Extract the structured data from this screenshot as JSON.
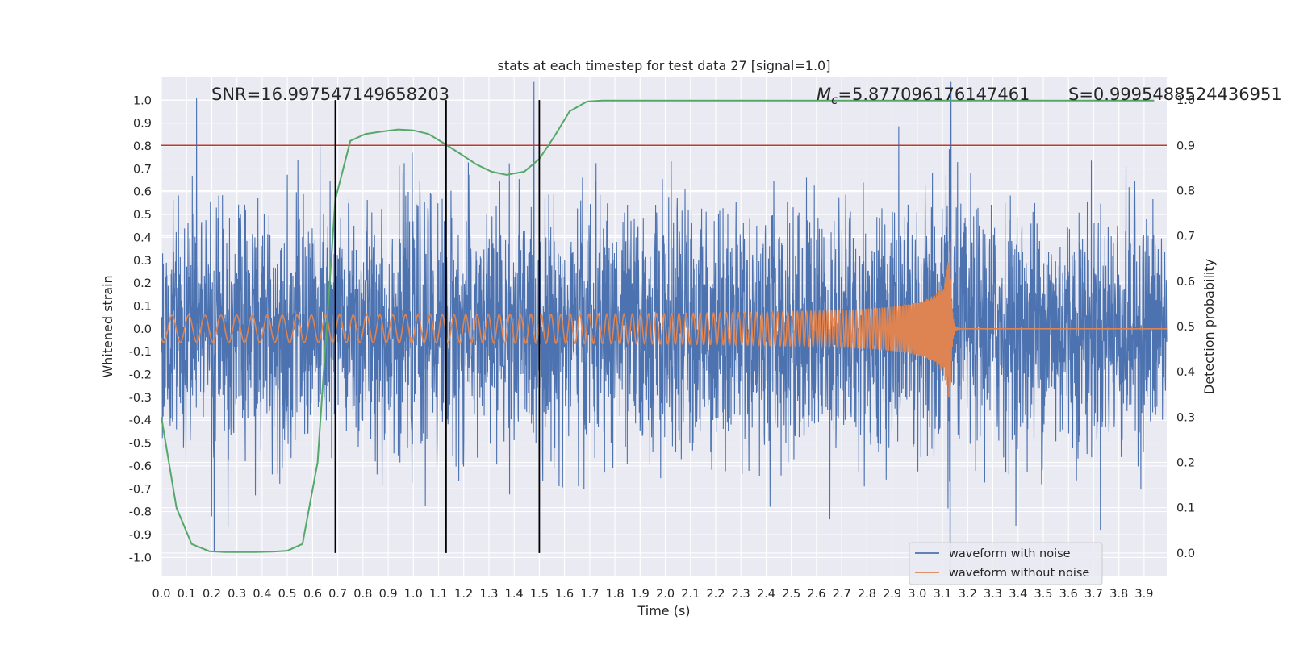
{
  "chart_data": {
    "type": "line",
    "title": "stats at each timestep for test data 27 [signal=1.0]",
    "xlabel": "Time (s)",
    "ylabel": "Whitened strain",
    "ylabel_right": "Detection probability",
    "xlim": [
      0.0,
      3.99
    ],
    "ylim": [
      -1.08,
      1.1
    ],
    "ylim_right": [
      -0.05,
      1.05
    ],
    "x_ticks": [
      "0.0",
      "0.1",
      "0.2",
      "0.3",
      "0.4",
      "0.5",
      "0.6",
      "0.7",
      "0.8",
      "0.9",
      "1.0",
      "1.1",
      "1.2",
      "1.3",
      "1.4",
      "1.5",
      "1.6",
      "1.7",
      "1.8",
      "1.9",
      "2.0",
      "2.1",
      "2.2",
      "2.3",
      "2.4",
      "2.5",
      "2.6",
      "2.7",
      "2.8",
      "2.9",
      "3.0",
      "3.1",
      "3.2",
      "3.3",
      "3.4",
      "3.5",
      "3.6",
      "3.7",
      "3.8",
      "3.9"
    ],
    "y_ticks": [
      "1.0",
      "0.9",
      "0.8",
      "0.7",
      "0.6",
      "0.5",
      "0.4",
      "0.3",
      "0.2",
      "0.1",
      "0.0",
      "-0.1",
      "-0.2",
      "-0.3",
      "-0.4",
      "-0.5",
      "-0.6",
      "-0.7",
      "-0.8",
      "-0.9",
      "-1.0"
    ],
    "y_ticks_right": [
      "1.0",
      "0.9",
      "0.8",
      "0.7",
      "0.6",
      "0.5",
      "0.4",
      "0.3",
      "0.2",
      "0.1",
      "0.0"
    ],
    "grid": true,
    "legend_position": "lower-right",
    "annotations": {
      "snr": "SNR=16.997547149658203",
      "mc_symbol": "M",
      "mc_sub": "c",
      "mc_value": "=5.877096176147461",
      "s": "S=0.9995488524436951"
    },
    "series": [
      {
        "name": "waveform with noise",
        "color": "#4c72b0",
        "kind": "noise",
        "std": 0.26,
        "peak_time": 3.13
      },
      {
        "name": "waveform without noise",
        "color": "#dd8452",
        "kind": "chirp",
        "start_amp": 0.05,
        "end_amp": 0.38,
        "merger_time": 3.13
      },
      {
        "name": "detection probability",
        "axis": "right",
        "color": "#55a868",
        "x": [
          0.0,
          0.06,
          0.12,
          0.19,
          0.25,
          0.31,
          0.37,
          0.44,
          0.5,
          0.56,
          0.62,
          0.69,
          0.75,
          0.81,
          0.87,
          0.94,
          1.0,
          1.06,
          1.12,
          1.19,
          1.25,
          1.31,
          1.37,
          1.44,
          1.5,
          1.56,
          1.62,
          1.69,
          1.75,
          1.87,
          2.0,
          2.5,
          3.0,
          3.5,
          3.94
        ],
        "y": [
          0.3,
          0.1,
          0.02,
          0.004,
          0.002,
          0.002,
          0.002,
          0.003,
          0.005,
          0.02,
          0.2,
          0.78,
          0.91,
          0.925,
          0.93,
          0.935,
          0.933,
          0.925,
          0.905,
          0.88,
          0.858,
          0.842,
          0.835,
          0.842,
          0.87,
          0.92,
          0.975,
          0.997,
          0.999,
          0.999,
          0.999,
          0.999,
          0.999,
          0.999,
          0.999
        ]
      }
    ],
    "horizontal_lines": [
      {
        "axis": "right",
        "y": 0.9,
        "color": "#c0392b"
      }
    ],
    "vertical_lines": [
      {
        "x": 0.69,
        "y0": 0.0,
        "y1": 1.0,
        "axis": "right",
        "color": "#000000"
      },
      {
        "x": 1.13,
        "y0": 0.0,
        "y1": 1.0,
        "axis": "right",
        "color": "#000000"
      },
      {
        "x": 1.5,
        "y0": 0.0,
        "y1": 1.0,
        "axis": "right",
        "color": "#000000"
      }
    ]
  }
}
